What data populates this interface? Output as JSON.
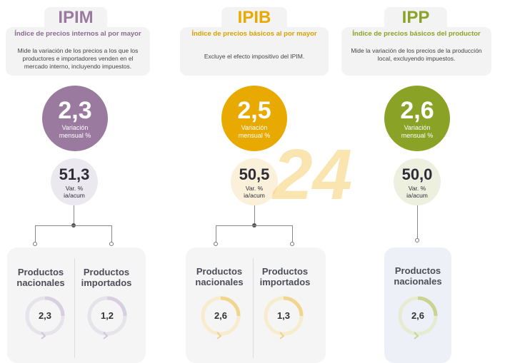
{
  "colors": {
    "ipim": "#9b7aa0",
    "ipib": "#e8aa00",
    "ipp": "#8aa326"
  },
  "ipim": {
    "title": "IPIM",
    "subtitle": "Índice de precios internos al por mayor",
    "description": "Mide la variación de los precios a los que los productores e importadores venden en el mercado interno, incluyendo impuestos.",
    "monthly_value": "2,3",
    "monthly_label": "Variación mensual %",
    "annual_value": "51,3",
    "annual_label": "Var. % ia/acum",
    "products": [
      {
        "label": "Productos nacionales",
        "value": "2,3"
      },
      {
        "label": "Productos importados",
        "value": "1,2"
      }
    ]
  },
  "ipib": {
    "title": "IPIB",
    "subtitle": "Índice de precios básicos al por mayor",
    "description": "Excluye el efecto impositivo del IPIM.",
    "monthly_value": "2,5",
    "monthly_label": "Variación mensual %",
    "annual_value": "50,5",
    "annual_label": "Var. % ia/acum",
    "products": [
      {
        "label": "Productos nacionales",
        "value": "2,6"
      },
      {
        "label": "Productos importados",
        "value": "1,3"
      }
    ]
  },
  "ipp": {
    "title": "IPP",
    "subtitle": "Índice de precios básicos del productor",
    "description": "Mide la variación de los precios de la producción local, excluyendo impuestos.",
    "monthly_value": "2,6",
    "monthly_label": "Variación mensual %",
    "annual_value": "50,0",
    "annual_label": "Var. % ia/acum",
    "products": [
      {
        "label": "Productos nacionales",
        "value": "2,6"
      }
    ]
  },
  "watermark": "24"
}
